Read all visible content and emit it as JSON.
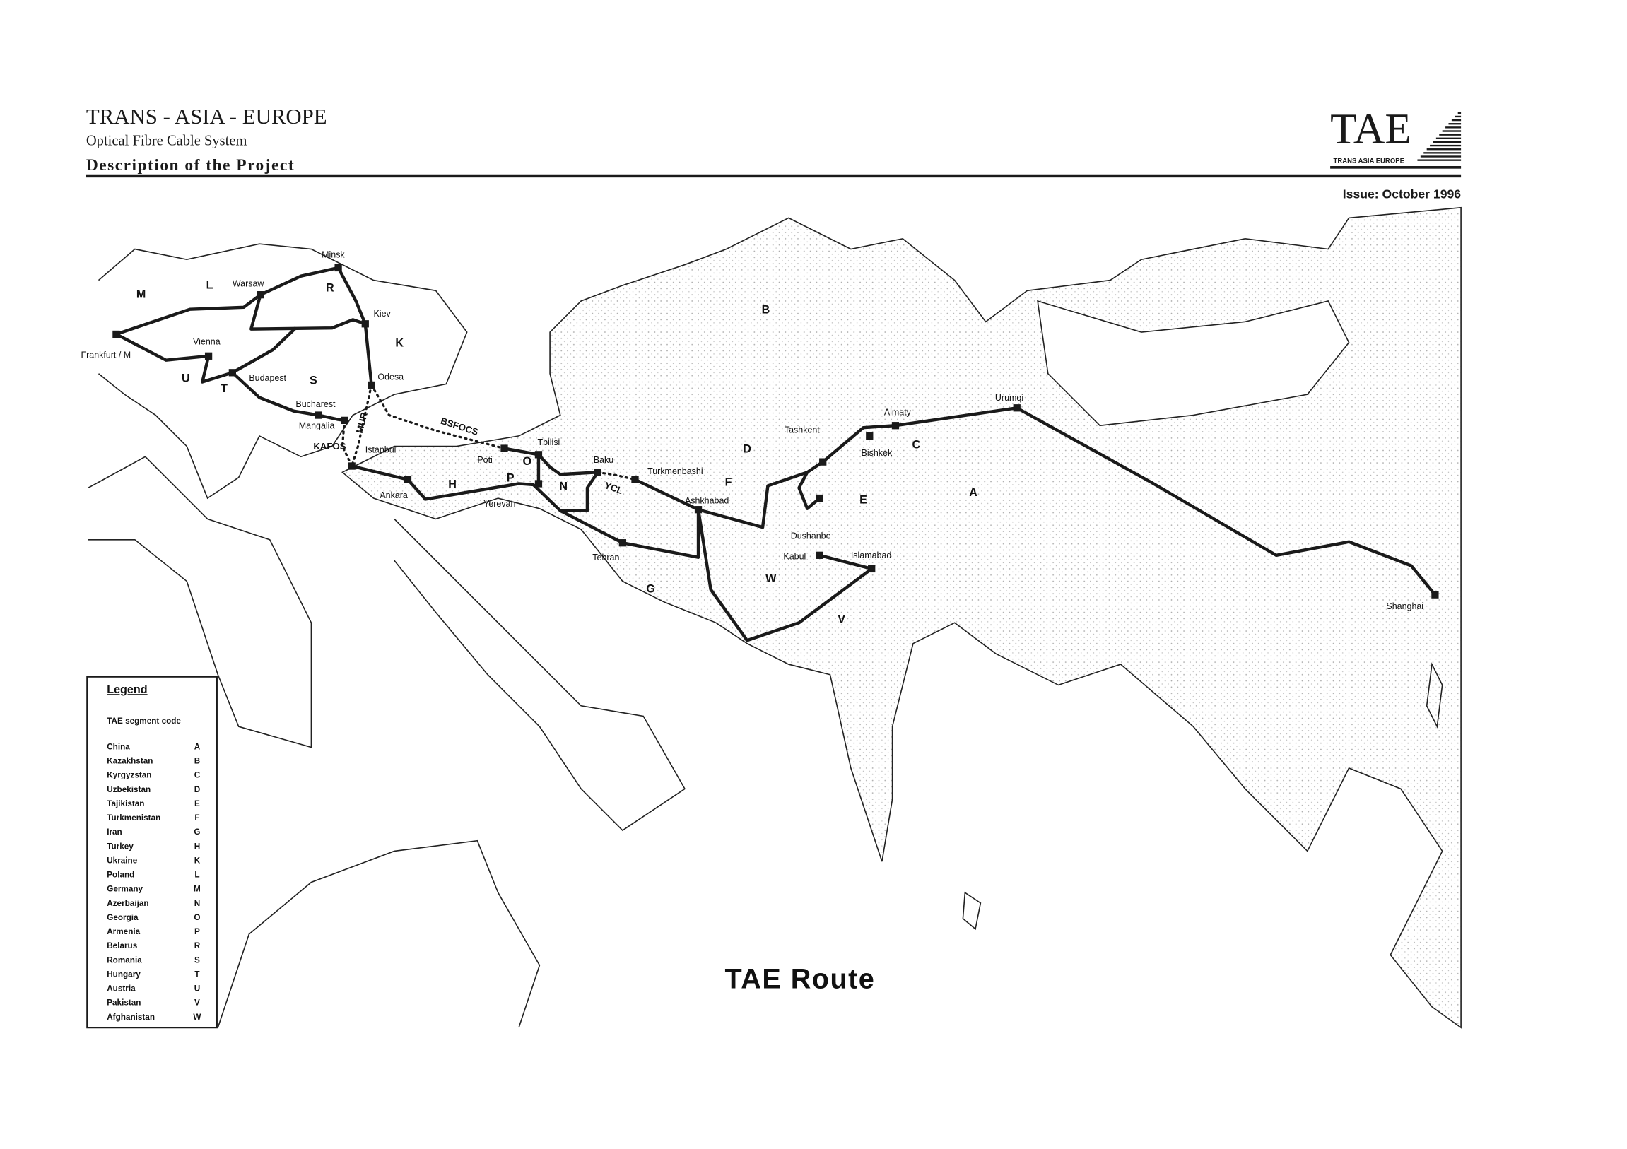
{
  "header": {
    "title": "TRANS - ASIA - EUROPE",
    "subtitle": "Optical Fibre Cable System",
    "section": "Description of the Project"
  },
  "logo": {
    "letters": "TAE",
    "tagline": "TRANS ASIA EUROPE"
  },
  "issue": "Issue: October 1996",
  "map_title": "TAE Route",
  "legend": {
    "heading": "Legend",
    "subheading": "TAE segment code",
    "entries": [
      {
        "country": "China",
        "code": "A"
      },
      {
        "country": "Kazakhstan",
        "code": "B"
      },
      {
        "country": "Kyrgyzstan",
        "code": "C"
      },
      {
        "country": "Uzbekistan",
        "code": "D"
      },
      {
        "country": "Tajikistan",
        "code": "E"
      },
      {
        "country": "Turkmenistan",
        "code": "F"
      },
      {
        "country": "Iran",
        "code": "G"
      },
      {
        "country": "Turkey",
        "code": "H"
      },
      {
        "country": "Ukraine",
        "code": "K"
      },
      {
        "country": "Poland",
        "code": "L"
      },
      {
        "country": "Germany",
        "code": "M"
      },
      {
        "country": "Azerbaijan",
        "code": "N"
      },
      {
        "country": "Georgia",
        "code": "O"
      },
      {
        "country": "Armenia",
        "code": "P"
      },
      {
        "country": "Belarus",
        "code": "R"
      },
      {
        "country": "Romania",
        "code": "S"
      },
      {
        "country": "Hungary",
        "code": "T"
      },
      {
        "country": "Austria",
        "code": "U"
      },
      {
        "country": "Pakistan",
        "code": "V"
      },
      {
        "country": "Afghanistan",
        "code": "W"
      }
    ]
  },
  "cities": [
    "Frankfurt / M",
    "Minsk",
    "Warsaw",
    "Kiev",
    "Vienna",
    "Budapest",
    "Odesa",
    "Bucharest",
    "Mangalia",
    "Istanbul",
    "Ankara",
    "Poti",
    "Tbilisi",
    "Yerevan",
    "Baku",
    "Turkmenbashi",
    "Ashkhabad",
    "Tehran",
    "Tashkent",
    "Almaty",
    "Bishkek",
    "Urumqi",
    "Dushanbe",
    "Kabul",
    "Islamabad",
    "Shanghai"
  ],
  "segment_codes": [
    "A",
    "B",
    "C",
    "D",
    "E",
    "F",
    "G",
    "H",
    "K",
    "L",
    "M",
    "N",
    "O",
    "P",
    "R",
    "S",
    "T",
    "U",
    "V",
    "W"
  ],
  "cable_systems": [
    "MUR",
    "BSFOCS",
    "KAFOS",
    "YCL"
  ],
  "colors": {
    "ink": "#1a1a1a",
    "stipple": "#cfcfcf"
  }
}
